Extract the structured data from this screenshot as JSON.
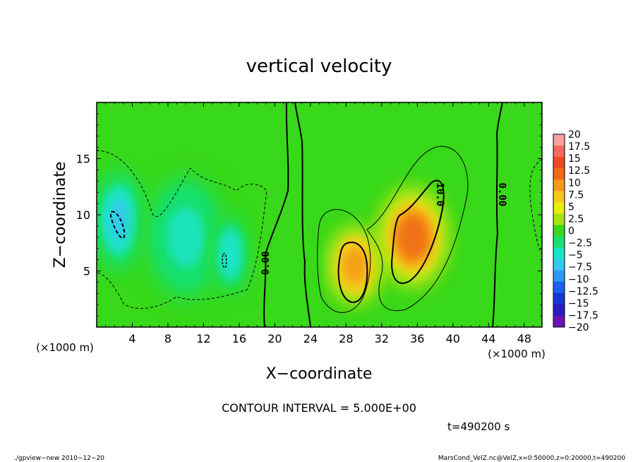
{
  "chart_data": {
    "type": "heatmap",
    "title": "vertical velocity",
    "xlabel": "X−coordinate",
    "ylabel": "Z−coordinate",
    "x_unit_label": "(×1000 m)",
    "y_unit_label": "(×1000 m)",
    "xlim": [
      0,
      50
    ],
    "ylim": [
      0,
      20
    ],
    "x_ticks": [
      4,
      8,
      12,
      16,
      20,
      24,
      28,
      32,
      36,
      40,
      44,
      48
    ],
    "y_ticks": [
      5,
      10,
      15
    ],
    "contour_interval_text": "CONTOUR INTERVAL = 5.000E+00",
    "contour_labels": [
      {
        "text": "0.00",
        "x": 19,
        "z": 5.7,
        "rotate": -90
      },
      {
        "text": "10.0",
        "x": 38.5,
        "z": 11.8,
        "rotate": 90
      },
      {
        "text": "0.00",
        "x": 45.5,
        "z": 11.8,
        "rotate": 90
      }
    ],
    "colorbar": {
      "labels": [
        "20",
        "17.5",
        "15",
        "12.5",
        "10",
        "7.5",
        "5",
        "2.5",
        "0",
        "−2.5",
        "−5",
        "−7.5",
        "−10",
        "−12.5",
        "−15",
        "−17.5",
        "−20"
      ],
      "levels": [
        20,
        17.5,
        15,
        12.5,
        10,
        7.5,
        5,
        2.5,
        0,
        -2.5,
        -5,
        -7.5,
        -10,
        -12.5,
        -15,
        -17.5,
        -20
      ],
      "colors": [
        "#fb9f9f",
        "#f36a5c",
        "#ef4a24",
        "#f06a18",
        "#f59a18",
        "#f5c81a",
        "#eaeb12",
        "#a8e212",
        "#38d81a",
        "#18e070",
        "#1ae4c8",
        "#34c8f0",
        "#2c98f4",
        "#1c60f0",
        "#1438d8",
        "#2c1cc0",
        "#6814b4"
      ]
    },
    "features": [
      {
        "name": "downdraft-left",
        "x": 2.5,
        "z": 9.5,
        "value": -9,
        "sx": 2.2,
        "sz": 3.5
      },
      {
        "name": "downdraft-mid",
        "x": 10,
        "z": 8,
        "value": -5,
        "sx": 4,
        "sz": 5
      },
      {
        "name": "downdraft-16",
        "x": 15,
        "z": 6.5,
        "value": -6,
        "sx": 1.8,
        "sz": 3.2
      },
      {
        "name": "updraft-28",
        "x": 29,
        "z": 5.5,
        "value": 13,
        "sx": 2.4,
        "sz": 2.8
      },
      {
        "name": "updraft-36",
        "x": 35.5,
        "z": 8,
        "value": 14,
        "sx": 3.2,
        "sz": 3.6
      }
    ]
  },
  "footer": {
    "time": "t=490200 s",
    "left_note": "./gpview−new   2010−12−20",
    "right_note": "MarsCond_VelZ.nc@VelZ,x=0:50000,z=0:20000,t=490200"
  }
}
